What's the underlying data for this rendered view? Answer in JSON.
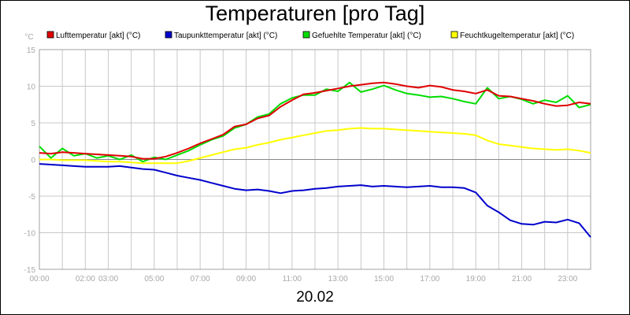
{
  "chart_data": {
    "type": "line",
    "title": "Temperaturen [pro Tag]",
    "date": "20.02",
    "ylabel": "°C",
    "xlabel": "",
    "ylim": [
      -15,
      15
    ],
    "xlim": [
      0,
      24
    ],
    "yticks": [
      15,
      10,
      5,
      0,
      -5,
      -10,
      -15
    ],
    "xticks": [
      {
        "pos": 0,
        "label": "00:00"
      },
      {
        "pos": 2,
        "label": "02:00"
      },
      {
        "pos": 3,
        "label": "03:00"
      },
      {
        "pos": 5,
        "label": "05:00"
      },
      {
        "pos": 7,
        "label": "07:00"
      },
      {
        "pos": 9,
        "label": "09:00"
      },
      {
        "pos": 11,
        "label": "11:00"
      },
      {
        "pos": 13,
        "label": "13:00"
      },
      {
        "pos": 15,
        "label": "15:00"
      },
      {
        "pos": 17,
        "label": "17:00"
      },
      {
        "pos": 19,
        "label": "19:00"
      },
      {
        "pos": 21,
        "label": "21:00"
      },
      {
        "pos": 23,
        "label": "23:00"
      }
    ],
    "grid": true,
    "legend_position": "top",
    "x": [
      0,
      0.5,
      1,
      1.5,
      2,
      2.5,
      3,
      3.5,
      4,
      4.5,
      5,
      5.5,
      6,
      6.5,
      7,
      7.5,
      8,
      8.5,
      9,
      9.5,
      10,
      10.5,
      11,
      11.5,
      12,
      12.5,
      13,
      13.5,
      14,
      14.5,
      15,
      15.5,
      16,
      16.5,
      17,
      17.5,
      18,
      18.5,
      19,
      19.5,
      20,
      20.5,
      21,
      21.5,
      22,
      22.5,
      23,
      23.5,
      24
    ],
    "series": [
      {
        "name": "Lufttemperatur [akt] (°C)",
        "color": "#e00000",
        "values": [
          0.9,
          0.8,
          1.0,
          0.9,
          0.8,
          0.7,
          0.6,
          0.5,
          0.4,
          0.1,
          0.1,
          0.4,
          0.9,
          1.5,
          2.2,
          2.8,
          3.4,
          4.5,
          4.8,
          5.6,
          6.0,
          7.2,
          8.1,
          8.9,
          9.1,
          9.4,
          9.7,
          10.0,
          10.2,
          10.4,
          10.5,
          10.3,
          10.0,
          9.8,
          10.1,
          9.9,
          9.5,
          9.3,
          9.0,
          9.5,
          8.7,
          8.6,
          8.3,
          8.0,
          7.6,
          7.3,
          7.4,
          7.8,
          7.6
        ]
      },
      {
        "name": "Taupunkttemperatur [akt] (°C)",
        "color": "#0000cc",
        "values": [
          -0.6,
          -0.7,
          -0.8,
          -0.9,
          -1.0,
          -1.0,
          -1.0,
          -0.9,
          -1.1,
          -1.3,
          -1.4,
          -1.8,
          -2.2,
          -2.5,
          -2.8,
          -3.2,
          -3.6,
          -4.0,
          -4.2,
          -4.1,
          -4.3,
          -4.6,
          -4.3,
          -4.2,
          -4.0,
          -3.9,
          -3.7,
          -3.6,
          -3.5,
          -3.7,
          -3.6,
          -3.7,
          -3.8,
          -3.7,
          -3.6,
          -3.8,
          -3.8,
          -3.9,
          -4.5,
          -6.3,
          -7.2,
          -8.3,
          -8.8,
          -8.9,
          -8.5,
          -8.6,
          -8.2,
          -8.7,
          -10.6
        ]
      },
      {
        "name": "Gefuehlte Temperatur [akt] (°C)",
        "color": "#00dd00",
        "values": [
          1.8,
          0.2,
          1.5,
          0.5,
          0.8,
          0.2,
          0.5,
          0.0,
          0.6,
          -0.3,
          0.3,
          0.0,
          0.6,
          1.2,
          2.0,
          2.7,
          3.2,
          4.3,
          4.8,
          5.8,
          6.2,
          7.6,
          8.4,
          8.8,
          8.8,
          9.6,
          9.3,
          10.5,
          9.2,
          9.6,
          10.1,
          9.5,
          9.0,
          8.8,
          8.5,
          8.6,
          8.3,
          7.9,
          7.6,
          9.8,
          8.3,
          8.6,
          8.2,
          7.6,
          8.1,
          7.8,
          8.7,
          7.1,
          7.5
        ]
      },
      {
        "name": "Feuchtkugeltemperatur [akt] (°C)",
        "color": "#ffff00",
        "values": [
          0.0,
          0.0,
          -0.1,
          -0.1,
          -0.1,
          -0.2,
          -0.3,
          -0.3,
          -0.4,
          -0.5,
          -0.5,
          -0.5,
          -0.5,
          -0.2,
          0.2,
          0.6,
          1.0,
          1.4,
          1.6,
          2.0,
          2.3,
          2.7,
          3.0,
          3.3,
          3.6,
          3.9,
          4.0,
          4.2,
          4.3,
          4.2,
          4.2,
          4.1,
          4.0,
          3.9,
          3.8,
          3.7,
          3.6,
          3.5,
          3.3,
          2.6,
          2.1,
          1.9,
          1.7,
          1.5,
          1.4,
          1.3,
          1.4,
          1.2,
          0.9
        ]
      }
    ]
  }
}
